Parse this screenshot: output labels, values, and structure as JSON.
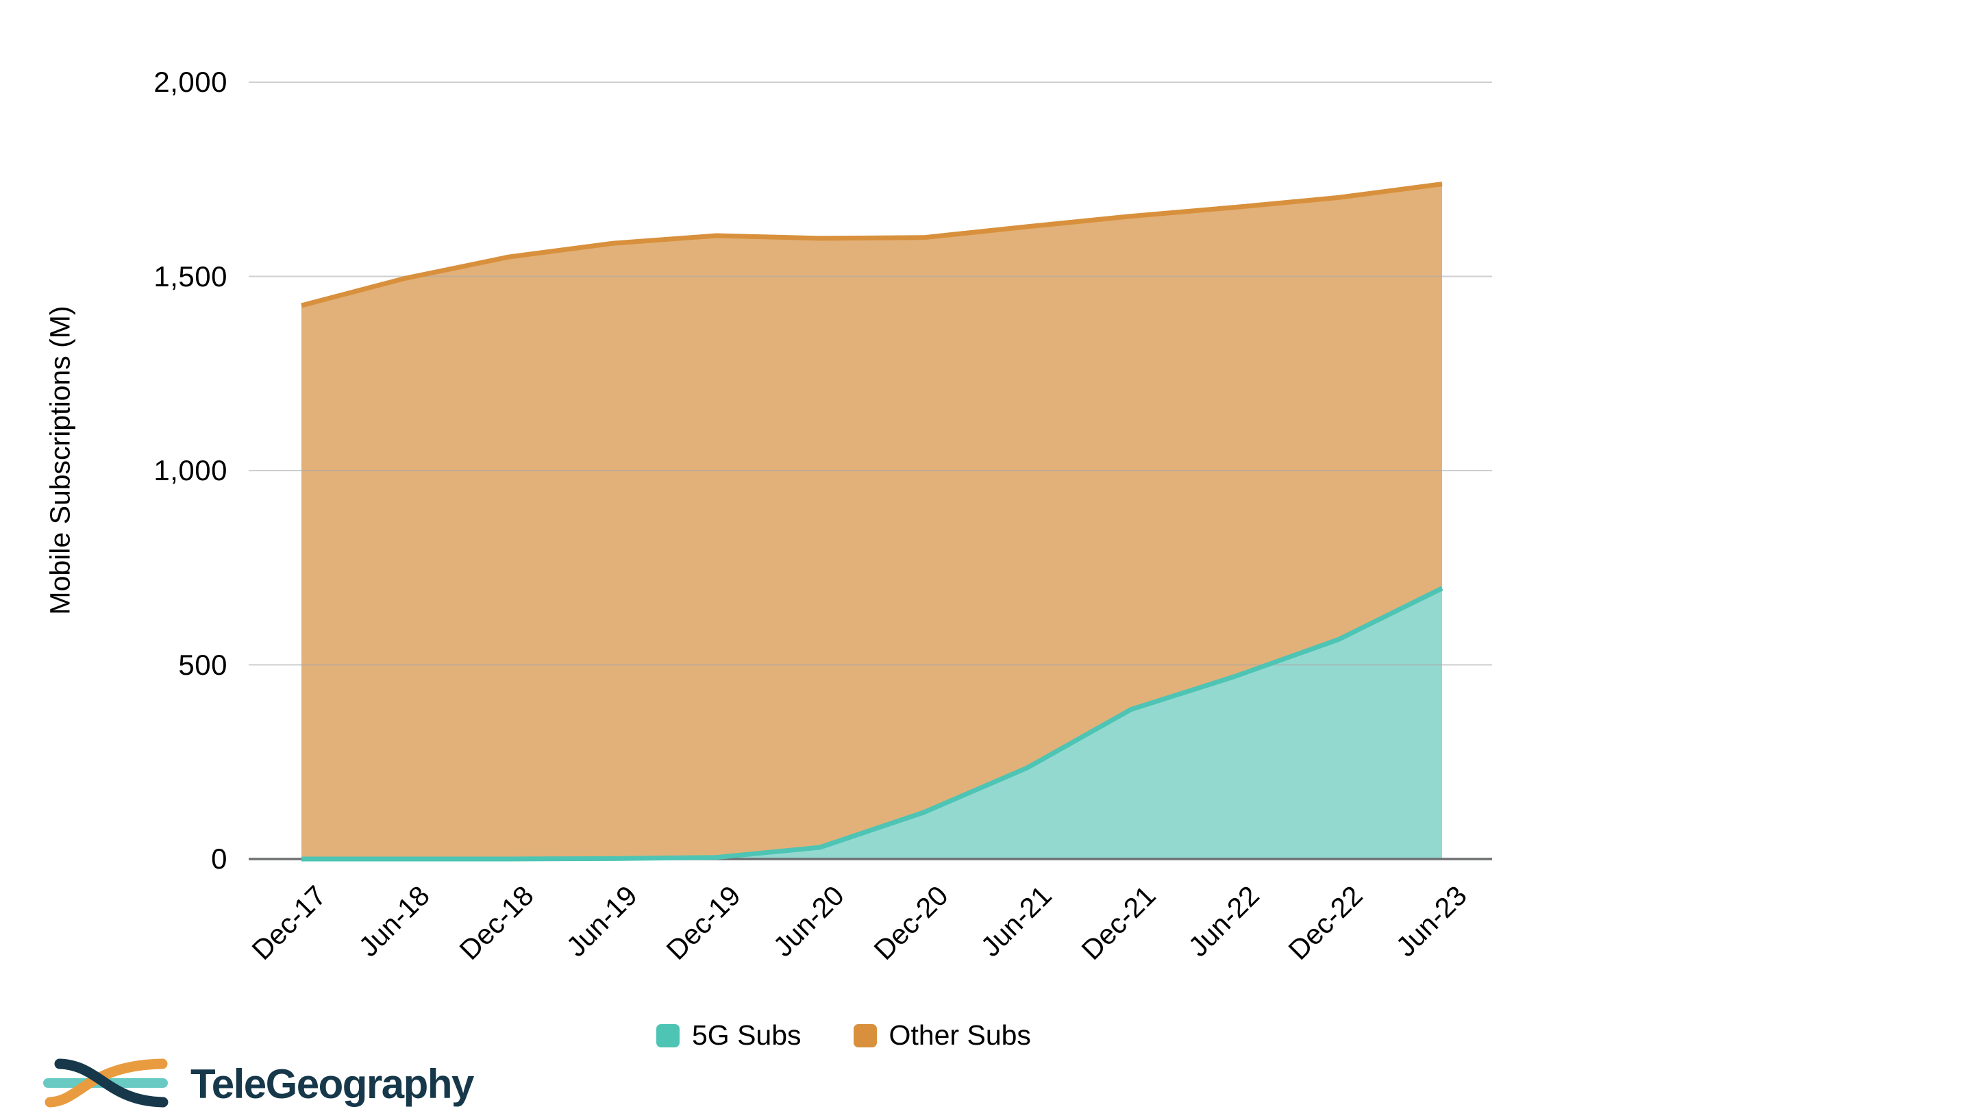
{
  "chart_data": {
    "type": "area",
    "stacked": true,
    "y_axis_title": "Mobile Subscriptions (M)",
    "categories": [
      "Dec-17",
      "Jun-18",
      "Dec-18",
      "Jun-19",
      "Dec-19",
      "Jun-20",
      "Dec-20",
      "Jun-21",
      "Dec-21",
      "Jun-22",
      "Dec-22",
      "Jun-23"
    ],
    "series": [
      {
        "name": "5G Subs",
        "line_color": "#4EC4B4",
        "fill_color": "#94D9D0",
        "values": [
          0,
          0,
          0,
          1,
          4,
          30,
          120,
          235,
          385,
          470,
          565,
          697
        ]
      },
      {
        "name": "Other Subs",
        "line_color": "#D8903C",
        "fill_color": "#E2B179",
        "values": [
          1425,
          1495,
          1550,
          1584,
          1601,
          1568,
          1480,
          1393,
          1270,
          1208,
          1138,
          1041
        ]
      }
    ],
    "stacked_totals": [
      1425,
      1495,
      1550,
      1585,
      1605,
      1598,
      1600,
      1628,
      1655,
      1678,
      1703,
      1738
    ],
    "y_ticks": [
      {
        "label": "0",
        "value": 0
      },
      {
        "label": "500",
        "value": 500
      },
      {
        "label": "1,000",
        "value": 1000
      },
      {
        "label": "1,500",
        "value": 1500
      },
      {
        "label": "2,000",
        "value": 2000
      }
    ],
    "ylim": [
      0,
      2000
    ],
    "grid": "horizontal",
    "x_tick_rotation": -45,
    "legend_position": "bottom"
  },
  "colors": {
    "gridline": "#A8A8A8",
    "axis_line": "#6E7072",
    "background": "#ffffff",
    "tick_text": "#000000",
    "logo_navy": "#16384A",
    "logo_orange": "#E99C3F",
    "logo_teal": "#68CAC3"
  },
  "footer": {
    "logo_text": "TeleGeography"
  }
}
